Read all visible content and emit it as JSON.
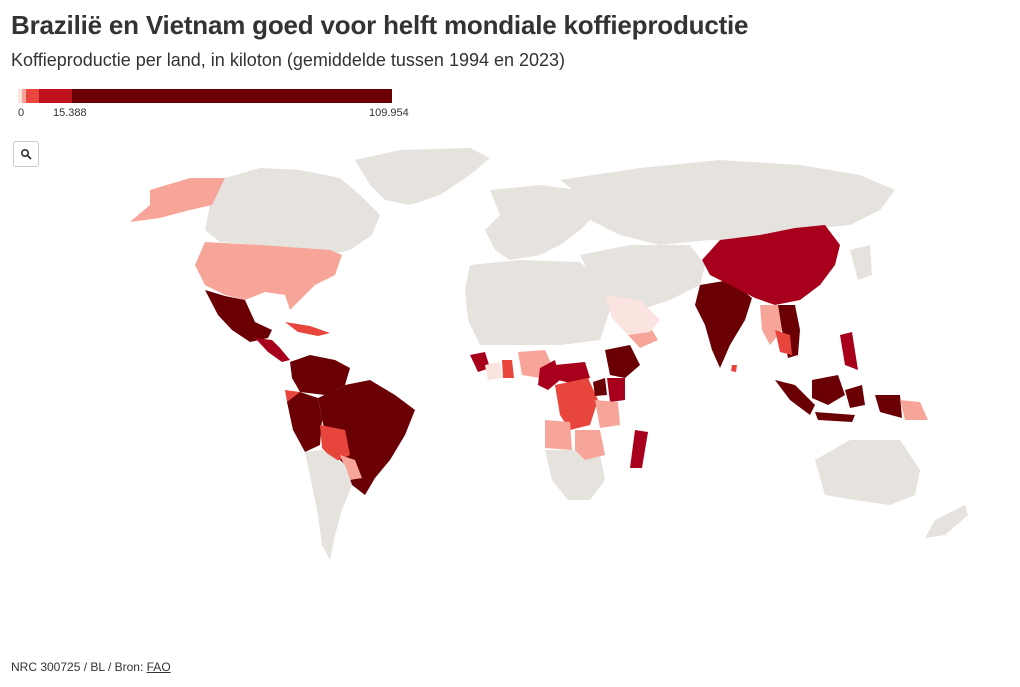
{
  "title": "Braziliё en Vietnam goed voor helft mondiale koffieproductie",
  "subtitle": "Koffieproductie per land, in kiloton (gemiddelde tussen 1994 en 2023)",
  "legend": {
    "ticks": [
      "0",
      "15.388",
      "109.954"
    ],
    "tick_values": [
      0,
      15388,
      109954
    ],
    "max": 109954,
    "colors": [
      "#fbe3df",
      "#f6a598",
      "#e8453c",
      "#c0121e",
      "#6b0004"
    ]
  },
  "zoom_button": {
    "icon": "magnifier-icon"
  },
  "map": {
    "land_color": "#e6e2dd",
    "region_colors": {
      "very_high": "#6b0004",
      "high": "#a8001c",
      "medium": "#e8453c",
      "low": "#f6a598",
      "very_low": "#fbe3df"
    }
  },
  "footer": {
    "credit": "NRC 300725 / BL / Bron:",
    "source_link": "FAO"
  }
}
